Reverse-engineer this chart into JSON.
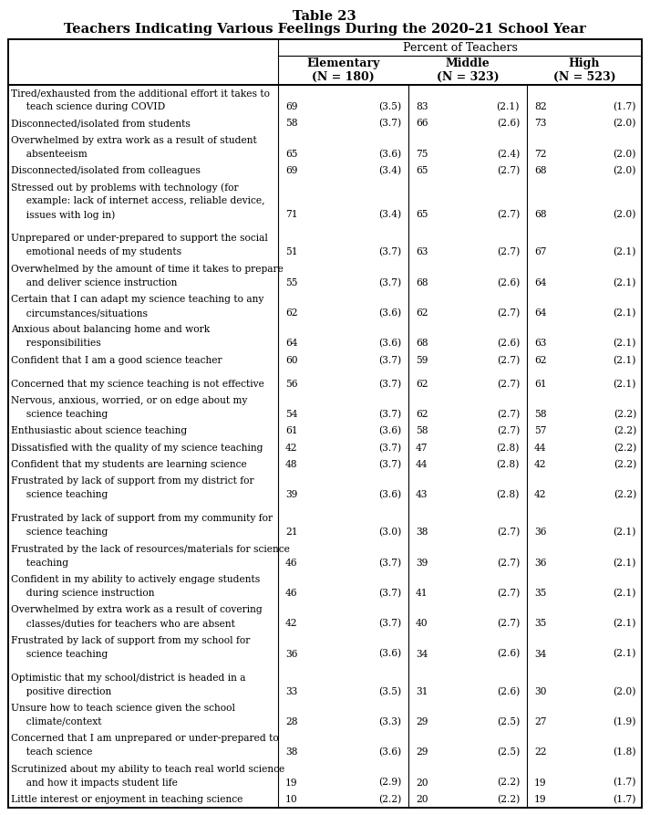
{
  "title1": "Table 23",
  "title2": "Teachers Indicating Various Feelings During the 2020–21 School Year",
  "header_main": "Percent of Teachers",
  "col1_header": "Elementary\n(N = 180)",
  "col2_header": "Middle\n(N = 323)",
  "col3_header": "High\n(N = 523)",
  "rows": [
    {
      "label": "Tired/exhausted from the additional effort it takes to\n  teach science during COVID",
      "e_val": "69",
      "e_se": "(3.5)",
      "m_val": "83",
      "m_se": "(2.1)",
      "h_val": "82",
      "h_se": "(1.7)",
      "blank": false
    },
    {
      "label": "Disconnected/isolated from students",
      "e_val": "58",
      "e_se": "(3.7)",
      "m_val": "66",
      "m_se": "(2.6)",
      "h_val": "73",
      "h_se": "(2.0)",
      "blank": false
    },
    {
      "label": "Overwhelmed by extra work as a result of student\n  absenteeism",
      "e_val": "65",
      "e_se": "(3.6)",
      "m_val": "75",
      "m_se": "(2.4)",
      "h_val": "72",
      "h_se": "(2.0)",
      "blank": false
    },
    {
      "label": "Disconnected/isolated from colleagues",
      "e_val": "69",
      "e_se": "(3.4)",
      "m_val": "65",
      "m_se": "(2.7)",
      "h_val": "68",
      "h_se": "(2.0)",
      "blank": false
    },
    {
      "label": "Stressed out by problems with technology (for\n  example: lack of internet access, reliable device,\n  issues with log in)",
      "e_val": "71",
      "e_se": "(3.4)",
      "m_val": "65",
      "m_se": "(2.7)",
      "h_val": "68",
      "h_se": "(2.0)",
      "blank": false
    },
    {
      "label": "",
      "e_val": "",
      "e_se": "",
      "m_val": "",
      "m_se": "",
      "h_val": "",
      "h_se": "",
      "blank": true
    },
    {
      "label": "Unprepared or under-prepared to support the social\n  emotional needs of my students",
      "e_val": "51",
      "e_se": "(3.7)",
      "m_val": "63",
      "m_se": "(2.7)",
      "h_val": "67",
      "h_se": "(2.1)",
      "blank": false
    },
    {
      "label": "Overwhelmed by the amount of time it takes to prepare\n  and deliver science instruction",
      "e_val": "55",
      "e_se": "(3.7)",
      "m_val": "68",
      "m_se": "(2.6)",
      "h_val": "64",
      "h_se": "(2.1)",
      "blank": false
    },
    {
      "label": "Certain that I can adapt my science teaching to any\n  circumstances/situations",
      "e_val": "62",
      "e_se": "(3.6)",
      "m_val": "62",
      "m_se": "(2.7)",
      "h_val": "64",
      "h_se": "(2.1)",
      "blank": false
    },
    {
      "label": "Anxious about balancing home and work\n  responsibilities",
      "e_val": "64",
      "e_se": "(3.6)",
      "m_val": "68",
      "m_se": "(2.6)",
      "h_val": "63",
      "h_se": "(2.1)",
      "blank": false
    },
    {
      "label": "Confident that I am a good science teacher",
      "e_val": "60",
      "e_se": "(3.7)",
      "m_val": "59",
      "m_se": "(2.7)",
      "h_val": "62",
      "h_se": "(2.1)",
      "blank": false
    },
    {
      "label": "",
      "e_val": "",
      "e_se": "",
      "m_val": "",
      "m_se": "",
      "h_val": "",
      "h_se": "",
      "blank": true
    },
    {
      "label": "Concerned that my science teaching is not effective",
      "e_val": "56",
      "e_se": "(3.7)",
      "m_val": "62",
      "m_se": "(2.7)",
      "h_val": "61",
      "h_se": "(2.1)",
      "blank": false
    },
    {
      "label": "Nervous, anxious, worried, or on edge about my\n  science teaching",
      "e_val": "54",
      "e_se": "(3.7)",
      "m_val": "62",
      "m_se": "(2.7)",
      "h_val": "58",
      "h_se": "(2.2)",
      "blank": false
    },
    {
      "label": "Enthusiastic about science teaching",
      "e_val": "61",
      "e_se": "(3.6)",
      "m_val": "58",
      "m_se": "(2.7)",
      "h_val": "57",
      "h_se": "(2.2)",
      "blank": false
    },
    {
      "label": "Dissatisfied with the quality of my science teaching",
      "e_val": "42",
      "e_se": "(3.7)",
      "m_val": "47",
      "m_se": "(2.8)",
      "h_val": "44",
      "h_se": "(2.2)",
      "blank": false
    },
    {
      "label": "Confident that my students are learning science",
      "e_val": "48",
      "e_se": "(3.7)",
      "m_val": "44",
      "m_se": "(2.8)",
      "h_val": "42",
      "h_se": "(2.2)",
      "blank": false
    },
    {
      "label": "Frustrated by lack of support from my district for\n  science teaching",
      "e_val": "39",
      "e_se": "(3.6)",
      "m_val": "43",
      "m_se": "(2.8)",
      "h_val": "42",
      "h_se": "(2.2)",
      "blank": false
    },
    {
      "label": "",
      "e_val": "",
      "e_se": "",
      "m_val": "",
      "m_se": "",
      "h_val": "",
      "h_se": "",
      "blank": true
    },
    {
      "label": "Frustrated by lack of support from my community for\n  science teaching",
      "e_val": "21",
      "e_se": "(3.0)",
      "m_val": "38",
      "m_se": "(2.7)",
      "h_val": "36",
      "h_se": "(2.1)",
      "blank": false
    },
    {
      "label": "Frustrated by the lack of resources/materials for science\n  teaching",
      "e_val": "46",
      "e_se": "(3.7)",
      "m_val": "39",
      "m_se": "(2.7)",
      "h_val": "36",
      "h_se": "(2.1)",
      "blank": false
    },
    {
      "label": "Confident in my ability to actively engage students\n  during science instruction",
      "e_val": "46",
      "e_se": "(3.7)",
      "m_val": "41",
      "m_se": "(2.7)",
      "h_val": "35",
      "h_se": "(2.1)",
      "blank": false
    },
    {
      "label": "Overwhelmed by extra work as a result of covering\n  classes/duties for teachers who are absent",
      "e_val": "42",
      "e_se": "(3.7)",
      "m_val": "40",
      "m_se": "(2.7)",
      "h_val": "35",
      "h_se": "(2.1)",
      "blank": false
    },
    {
      "label": "Frustrated by lack of support from my school for\n  science teaching",
      "e_val": "36",
      "e_se": "(3.6)",
      "m_val": "34",
      "m_se": "(2.6)",
      "h_val": "34",
      "h_se": "(2.1)",
      "blank": false
    },
    {
      "label": "",
      "e_val": "",
      "e_se": "",
      "m_val": "",
      "m_se": "",
      "h_val": "",
      "h_se": "",
      "blank": true
    },
    {
      "label": "Optimistic that my school/district is headed in a\n  positive direction",
      "e_val": "33",
      "e_se": "(3.5)",
      "m_val": "31",
      "m_se": "(2.6)",
      "h_val": "30",
      "h_se": "(2.0)",
      "blank": false
    },
    {
      "label": "Unsure how to teach science given the school\n  climate/context",
      "e_val": "28",
      "e_se": "(3.3)",
      "m_val": "29",
      "m_se": "(2.5)",
      "h_val": "27",
      "h_se": "(1.9)",
      "blank": false
    },
    {
      "label": "Concerned that I am unprepared or under-prepared to\n  teach science",
      "e_val": "38",
      "e_se": "(3.6)",
      "m_val": "29",
      "m_se": "(2.5)",
      "h_val": "22",
      "h_se": "(1.8)",
      "blank": false
    },
    {
      "label": "Scrutinized about my ability to teach real world science\n  and how it impacts student life",
      "e_val": "19",
      "e_se": "(2.9)",
      "m_val": "20",
      "m_se": "(2.2)",
      "h_val": "19",
      "h_se": "(1.7)",
      "blank": false
    },
    {
      "label": "Little interest or enjoyment in teaching science",
      "e_val": "10",
      "e_se": "(2.2)",
      "m_val": "20",
      "m_se": "(2.2)",
      "h_val": "19",
      "h_se": "(1.7)",
      "blank": false
    }
  ]
}
